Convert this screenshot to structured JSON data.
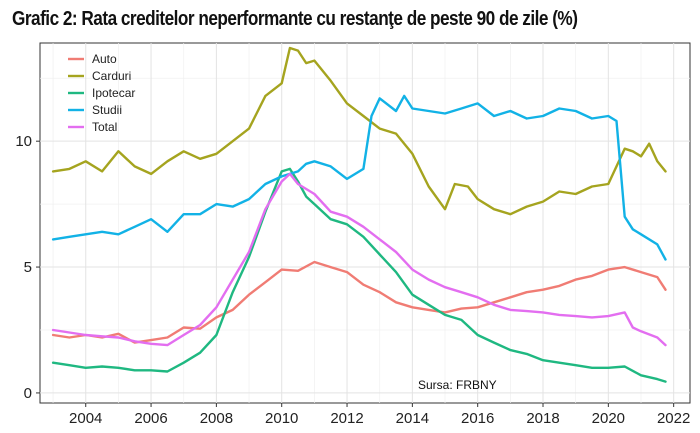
{
  "chart_data": {
    "type": "line",
    "title": "Grafic 2: Rata creditelor neperformante cu restanţe de peste 90 de zile (%)",
    "xlabel": "",
    "ylabel": "",
    "xlim": [
      2002.6,
      2022.5
    ],
    "ylim": [
      -0.4,
      13.9
    ],
    "x_ticks": [
      "2004",
      "2006",
      "2008",
      "2010",
      "2012",
      "2014",
      "2016",
      "2018",
      "2020",
      "2022"
    ],
    "x_tick_values": [
      2004,
      2006,
      2008,
      2010,
      2012,
      2014,
      2016,
      2018,
      2020,
      2022
    ],
    "y_ticks": [
      "0",
      "5",
      "10"
    ],
    "y_tick_values": [
      0,
      5,
      10
    ],
    "grid": true,
    "legend_position": "top-left",
    "source": "Sursa: FRBNY",
    "series": [
      {
        "name": "Auto",
        "color": "#f07c74",
        "points": [
          [
            2003.0,
            2.3
          ],
          [
            2003.5,
            2.2
          ],
          [
            2004.0,
            2.3
          ],
          [
            2004.5,
            2.2
          ],
          [
            2005.0,
            2.35
          ],
          [
            2005.5,
            2.0
          ],
          [
            2006.0,
            2.1
          ],
          [
            2006.5,
            2.2
          ],
          [
            2007.0,
            2.6
          ],
          [
            2007.5,
            2.55
          ],
          [
            2008.0,
            3.0
          ],
          [
            2008.5,
            3.3
          ],
          [
            2009.0,
            3.9
          ],
          [
            2009.5,
            4.4
          ],
          [
            2010.0,
            4.9
          ],
          [
            2010.5,
            4.85
          ],
          [
            2011.0,
            5.2
          ],
          [
            2011.5,
            5.0
          ],
          [
            2012.0,
            4.8
          ],
          [
            2012.5,
            4.3
          ],
          [
            2013.0,
            4.0
          ],
          [
            2013.5,
            3.6
          ],
          [
            2014.0,
            3.4
          ],
          [
            2014.5,
            3.3
          ],
          [
            2015.0,
            3.2
          ],
          [
            2015.5,
            3.35
          ],
          [
            2016.0,
            3.4
          ],
          [
            2016.5,
            3.6
          ],
          [
            2017.0,
            3.8
          ],
          [
            2017.5,
            4.0
          ],
          [
            2018.0,
            4.1
          ],
          [
            2018.5,
            4.25
          ],
          [
            2019.0,
            4.5
          ],
          [
            2019.5,
            4.65
          ],
          [
            2020.0,
            4.9
          ],
          [
            2020.5,
            5.0
          ],
          [
            2021.0,
            4.8
          ],
          [
            2021.5,
            4.6
          ],
          [
            2021.75,
            4.1
          ]
        ]
      },
      {
        "name": "Carduri",
        "color": "#a5a41f",
        "points": [
          [
            2003.0,
            8.8
          ],
          [
            2003.5,
            8.9
          ],
          [
            2004.0,
            9.2
          ],
          [
            2004.5,
            8.8
          ],
          [
            2005.0,
            9.6
          ],
          [
            2005.5,
            9.0
          ],
          [
            2006.0,
            8.7
          ],
          [
            2006.5,
            9.2
          ],
          [
            2007.0,
            9.6
          ],
          [
            2007.5,
            9.3
          ],
          [
            2008.0,
            9.5
          ],
          [
            2008.5,
            10.0
          ],
          [
            2009.0,
            10.5
          ],
          [
            2009.5,
            11.8
          ],
          [
            2010.0,
            12.3
          ],
          [
            2010.25,
            13.7
          ],
          [
            2010.5,
            13.6
          ],
          [
            2010.75,
            13.1
          ],
          [
            2011.0,
            13.2
          ],
          [
            2011.5,
            12.4
          ],
          [
            2012.0,
            11.5
          ],
          [
            2012.5,
            11.0
          ],
          [
            2013.0,
            10.5
          ],
          [
            2013.5,
            10.3
          ],
          [
            2014.0,
            9.5
          ],
          [
            2014.5,
            8.2
          ],
          [
            2015.0,
            7.3
          ],
          [
            2015.3,
            8.3
          ],
          [
            2015.7,
            8.2
          ],
          [
            2016.0,
            7.7
          ],
          [
            2016.5,
            7.3
          ],
          [
            2017.0,
            7.1
          ],
          [
            2017.5,
            7.4
          ],
          [
            2018.0,
            7.6
          ],
          [
            2018.5,
            8.0
          ],
          [
            2019.0,
            7.9
          ],
          [
            2019.5,
            8.2
          ],
          [
            2020.0,
            8.3
          ],
          [
            2020.25,
            9.0
          ],
          [
            2020.5,
            9.7
          ],
          [
            2020.75,
            9.6
          ],
          [
            2021.0,
            9.4
          ],
          [
            2021.25,
            9.9
          ],
          [
            2021.5,
            9.2
          ],
          [
            2021.75,
            8.8
          ]
        ]
      },
      {
        "name": "Ipotecar",
        "color": "#1fb881",
        "points": [
          [
            2003.0,
            1.2
          ],
          [
            2003.5,
            1.1
          ],
          [
            2004.0,
            1.0
          ],
          [
            2004.5,
            1.05
          ],
          [
            2005.0,
            1.0
          ],
          [
            2005.5,
            0.9
          ],
          [
            2006.0,
            0.9
          ],
          [
            2006.5,
            0.85
          ],
          [
            2007.0,
            1.2
          ],
          [
            2007.5,
            1.6
          ],
          [
            2008.0,
            2.3
          ],
          [
            2008.5,
            4.0
          ],
          [
            2009.0,
            5.4
          ],
          [
            2009.5,
            7.2
          ],
          [
            2010.0,
            8.8
          ],
          [
            2010.25,
            8.9
          ],
          [
            2010.5,
            8.4
          ],
          [
            2010.75,
            7.8
          ],
          [
            2011.0,
            7.5
          ],
          [
            2011.5,
            6.9
          ],
          [
            2012.0,
            6.7
          ],
          [
            2012.5,
            6.2
          ],
          [
            2013.0,
            5.5
          ],
          [
            2013.5,
            4.8
          ],
          [
            2014.0,
            3.9
          ],
          [
            2014.5,
            3.5
          ],
          [
            2015.0,
            3.1
          ],
          [
            2015.5,
            2.9
          ],
          [
            2016.0,
            2.3
          ],
          [
            2016.5,
            2.0
          ],
          [
            2017.0,
            1.7
          ],
          [
            2017.5,
            1.55
          ],
          [
            2018.0,
            1.3
          ],
          [
            2018.5,
            1.2
          ],
          [
            2019.0,
            1.1
          ],
          [
            2019.5,
            1.0
          ],
          [
            2020.0,
            1.0
          ],
          [
            2020.5,
            1.05
          ],
          [
            2021.0,
            0.7
          ],
          [
            2021.5,
            0.55
          ],
          [
            2021.75,
            0.45
          ]
        ]
      },
      {
        "name": "Studii",
        "color": "#12b2e6",
        "points": [
          [
            2003.0,
            6.1
          ],
          [
            2003.5,
            6.2
          ],
          [
            2004.0,
            6.3
          ],
          [
            2004.5,
            6.4
          ],
          [
            2005.0,
            6.3
          ],
          [
            2005.5,
            6.6
          ],
          [
            2006.0,
            6.9
          ],
          [
            2006.5,
            6.4
          ],
          [
            2007.0,
            7.1
          ],
          [
            2007.5,
            7.1
          ],
          [
            2008.0,
            7.5
          ],
          [
            2008.5,
            7.4
          ],
          [
            2009.0,
            7.7
          ],
          [
            2009.5,
            8.3
          ],
          [
            2010.0,
            8.6
          ],
          [
            2010.5,
            8.8
          ],
          [
            2010.75,
            9.1
          ],
          [
            2011.0,
            9.2
          ],
          [
            2011.5,
            9.0
          ],
          [
            2012.0,
            8.5
          ],
          [
            2012.5,
            8.9
          ],
          [
            2012.75,
            11.0
          ],
          [
            2013.0,
            11.7
          ],
          [
            2013.5,
            11.2
          ],
          [
            2013.75,
            11.8
          ],
          [
            2014.0,
            11.3
          ],
          [
            2014.5,
            11.2
          ],
          [
            2015.0,
            11.1
          ],
          [
            2015.5,
            11.3
          ],
          [
            2016.0,
            11.5
          ],
          [
            2016.5,
            11.0
          ],
          [
            2017.0,
            11.2
          ],
          [
            2017.5,
            10.9
          ],
          [
            2018.0,
            11.0
          ],
          [
            2018.5,
            11.3
          ],
          [
            2019.0,
            11.2
          ],
          [
            2019.5,
            10.9
          ],
          [
            2020.0,
            11.0
          ],
          [
            2020.25,
            10.8
          ],
          [
            2020.5,
            7.0
          ],
          [
            2020.75,
            6.5
          ],
          [
            2021.0,
            6.3
          ],
          [
            2021.5,
            5.9
          ],
          [
            2021.75,
            5.3
          ]
        ]
      },
      {
        "name": "Total",
        "color": "#e36ef0",
        "points": [
          [
            2003.0,
            2.5
          ],
          [
            2003.5,
            2.4
          ],
          [
            2004.0,
            2.3
          ],
          [
            2004.5,
            2.25
          ],
          [
            2005.0,
            2.2
          ],
          [
            2005.5,
            2.05
          ],
          [
            2006.0,
            1.95
          ],
          [
            2006.5,
            1.9
          ],
          [
            2007.0,
            2.3
          ],
          [
            2007.5,
            2.7
          ],
          [
            2008.0,
            3.4
          ],
          [
            2008.5,
            4.5
          ],
          [
            2009.0,
            5.6
          ],
          [
            2009.5,
            7.3
          ],
          [
            2010.0,
            8.4
          ],
          [
            2010.25,
            8.7
          ],
          [
            2010.5,
            8.3
          ],
          [
            2011.0,
            7.9
          ],
          [
            2011.5,
            7.2
          ],
          [
            2012.0,
            7.0
          ],
          [
            2012.5,
            6.6
          ],
          [
            2013.0,
            6.1
          ],
          [
            2013.5,
            5.6
          ],
          [
            2014.0,
            4.9
          ],
          [
            2014.5,
            4.5
          ],
          [
            2015.0,
            4.2
          ],
          [
            2015.5,
            4.0
          ],
          [
            2016.0,
            3.8
          ],
          [
            2016.5,
            3.5
          ],
          [
            2017.0,
            3.3
          ],
          [
            2017.5,
            3.25
          ],
          [
            2018.0,
            3.2
          ],
          [
            2018.5,
            3.1
          ],
          [
            2019.0,
            3.05
          ],
          [
            2019.5,
            3.0
          ],
          [
            2020.0,
            3.05
          ],
          [
            2020.5,
            3.2
          ],
          [
            2020.75,
            2.6
          ],
          [
            2021.0,
            2.45
          ],
          [
            2021.5,
            2.2
          ],
          [
            2021.75,
            1.9
          ]
        ]
      }
    ]
  }
}
